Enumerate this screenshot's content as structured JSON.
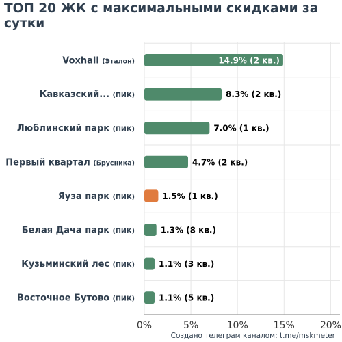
{
  "chart_data": {
    "type": "bar",
    "orientation": "horizontal",
    "title": "ТОП 20 ЖК с максимальными скидками за сутки",
    "credit": "Создано телеграм каналом: t.me/mskmeter",
    "xlim": [
      0,
      21
    ],
    "x_ticks": [
      0,
      5,
      10,
      15,
      20
    ],
    "x_tick_labels": [
      "0%",
      "5%",
      "10%",
      "15%",
      "20%"
    ],
    "grid": true,
    "colors": {
      "default_bar": "#4f8a6b",
      "highlight_bar": "#e07b3e",
      "label_text": "#2f3e4e",
      "value_text": "#000000",
      "value_text_inside": "#ffffff",
      "grid": "#e6e6e6",
      "axis": "#a8a8a8"
    },
    "items": [
      {
        "name": "Voxhall",
        "developer": "(Эталон)",
        "value": 14.9,
        "label": "14.9% (2 кв.)",
        "highlight": false,
        "label_inside": true
      },
      {
        "name": "Кавказский...",
        "developer": "(ПИК)",
        "value": 8.3,
        "label": "8.3% (2 кв.)",
        "highlight": false,
        "label_inside": false
      },
      {
        "name": "Люблинский парк",
        "developer": "(ПИК)",
        "value": 7.0,
        "label": "7.0% (1 кв.)",
        "highlight": false,
        "label_inside": false
      },
      {
        "name": "Первый квартал",
        "developer": "(Брусника)",
        "value": 4.7,
        "label": "4.7% (2 кв.)",
        "highlight": false,
        "label_inside": false
      },
      {
        "name": "Яуза парк",
        "developer": "(ПИК)",
        "value": 1.5,
        "label": "1.5% (1 кв.)",
        "highlight": true,
        "label_inside": false
      },
      {
        "name": "Белая Дача парк",
        "developer": "(ПИК)",
        "value": 1.3,
        "label": "1.3% (8 кв.)",
        "highlight": false,
        "label_inside": false
      },
      {
        "name": "Кузьминский лес",
        "developer": "(ПИК)",
        "value": 1.1,
        "label": "1.1% (3 кв.)",
        "highlight": false,
        "label_inside": false
      },
      {
        "name": "Восточное Бутово",
        "developer": "(ПИК)",
        "value": 1.1,
        "label": "1.1% (5 кв.)",
        "highlight": false,
        "label_inside": false
      }
    ]
  }
}
